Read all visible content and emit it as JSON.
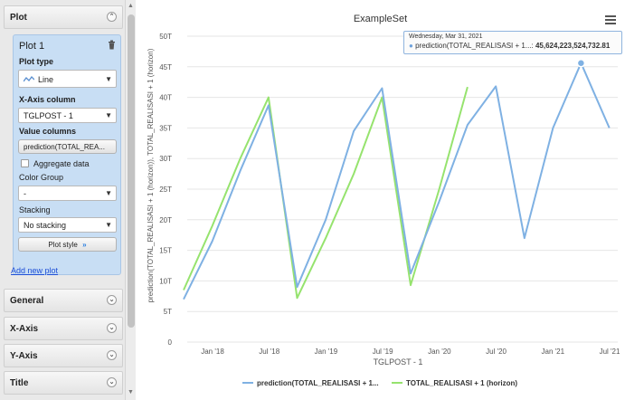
{
  "panel": {
    "plot_header": "Plot",
    "plot_name": "Plot 1",
    "plot_type_label": "Plot type",
    "plot_type_value": "Line",
    "x_axis_label": "X-Axis column",
    "x_axis_value": "TGLPOST - 1",
    "value_columns_label": "Value columns",
    "value_columns_value": "prediction(TOTAL_REA...",
    "aggregate_label": "Aggregate data",
    "color_group_label": "Color Group",
    "color_group_value": "-",
    "stacking_label": "Stacking",
    "stacking_value": "No stacking",
    "plot_style_label": "Plot style",
    "add_new_plot": "Add new plot",
    "sections": [
      "General",
      "X-Axis",
      "Y-Axis",
      "Title"
    ]
  },
  "tooltip": {
    "date": "Wednesday, Mar 31, 2021",
    "series": "prediction(TOTAL_REALISASI + 1...:",
    "value": "45,624,223,524,732.81"
  },
  "colors": {
    "prediction": "#7fb1e3",
    "actual": "#96e36e",
    "panel_blue": "#c8def4",
    "link": "#1f4fd6"
  },
  "chart_data": {
    "type": "line",
    "title": "ExampleSet",
    "xlabel": "TGLPOST - 1",
    "ylabel": "prediction(TOTAL_REALISASI + 1 (horizon)), TOTAL_REALISASI + 1 (horizon)",
    "x_ticks": [
      "Jan '18",
      "Jul '18",
      "Jan '19",
      "Jul '19",
      "Jan '20",
      "Jul '20",
      "Jan '21",
      "Jul '21"
    ],
    "y_ticks": [
      "0",
      "5T",
      "10T",
      "15T",
      "20T",
      "25T",
      "30T",
      "35T",
      "40T",
      "45T",
      "50T"
    ],
    "ylim": [
      0,
      50
    ],
    "legend_position": "bottom",
    "series": [
      {
        "name": "prediction(TOTAL_REALISASI + 1...",
        "color": "#7fb1e3",
        "x": [
          "2017-09-30",
          "2017-12-31",
          "2018-03-31",
          "2018-06-30",
          "2018-09-30",
          "2018-12-31",
          "2019-03-31",
          "2019-06-30",
          "2019-09-30",
          "2019-12-31",
          "2020-03-31",
          "2020-06-30",
          "2020-09-30",
          "2020-12-31",
          "2021-03-31",
          "2021-06-30"
        ],
        "values": [
          7,
          16.5,
          28,
          38.7,
          9,
          20,
          34.5,
          41.5,
          11.2,
          23,
          35.5,
          41.8,
          17,
          35,
          45.6,
          35
        ]
      },
      {
        "name": "TOTAL_REALISASI + 1 (horizon)",
        "color": "#96e36e",
        "x": [
          "2017-09-30",
          "2017-12-31",
          "2018-03-31",
          "2018-06-30",
          "2018-09-30",
          "2018-12-31",
          "2019-03-31",
          "2019-06-30",
          "2019-09-30",
          "2019-12-31",
          "2020-03-31"
        ],
        "values": [
          8.5,
          19,
          30,
          40,
          7.2,
          17,
          27.5,
          40,
          9.3,
          25,
          41.7
        ]
      }
    ]
  }
}
